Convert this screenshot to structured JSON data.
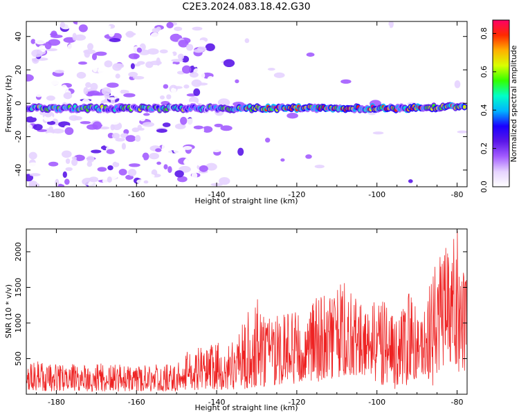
{
  "title": "C2E3.2024.083.18.42.G30",
  "chart_data": [
    {
      "type": "heatmap",
      "xlabel": "Height of straight line (km)",
      "ylabel": "Frequency (Hz)",
      "xlim": [
        -187.5,
        -77.5
      ],
      "ylim": [
        -50,
        49
      ],
      "xticks": [
        -180,
        -160,
        -140,
        -120,
        -100,
        -80
      ],
      "yticks": [
        -40,
        -20,
        0,
        20,
        40
      ],
      "colorbar": {
        "label": "Normalized spectral amplitude",
        "range": [
          0,
          0.87
        ],
        "ticks": [
          0.0,
          0.2,
          0.4,
          0.6,
          0.8
        ],
        "colormap": [
          "#ffffff",
          "#e6d3ff",
          "#a35cff",
          "#5a16e8",
          "#1a00ff",
          "#00b4ff",
          "#00ffc8",
          "#33ff00",
          "#d9ff00",
          "#ffb000",
          "#ff2a00",
          "#ff0066"
        ]
      },
      "features": [
        {
          "name": "signal band",
          "x_range": [
            -187.5,
            -78
          ],
          "frequency_hz": [
            -5,
            0
          ],
          "peak_amplitude": 0.85
        }
      ]
    },
    {
      "type": "line",
      "xlabel": "Height of straight line (km)",
      "ylabel": "SNR (10 * v/v)",
      "xlim": [
        -187.5,
        -77.5
      ],
      "ylim": [
        0,
        2320
      ],
      "xticks": [
        -180,
        -160,
        -140,
        -120,
        -100,
        -80
      ],
      "yticks": [
        500,
        1000,
        1500,
        2000
      ],
      "series": [
        {
          "color": "#ee2222",
          "envelope_x": [
            -187,
            -180,
            -170,
            -160,
            -150,
            -148,
            -145,
            -140,
            -135,
            -130,
            -128,
            -125,
            -120,
            -118,
            -115,
            -112,
            -110,
            -108,
            -105,
            -102,
            -100,
            -98,
            -95,
            -92,
            -90,
            -88,
            -86,
            -84,
            -82,
            -80,
            -79,
            -78
          ],
          "envelope_low": [
            50,
            40,
            40,
            40,
            40,
            60,
            60,
            60,
            70,
            80,
            100,
            130,
            150,
            200,
            170,
            200,
            250,
            200,
            240,
            260,
            150,
            120,
            60,
            130,
            200,
            280,
            50,
            380,
            420,
            400,
            200,
            280
          ],
          "envelope_high": [
            500,
            420,
            440,
            400,
            440,
            600,
            650,
            720,
            800,
            1450,
            1050,
            1100,
            1200,
            880,
            1550,
            1500,
            1500,
            1650,
            1400,
            1100,
            1750,
            1350,
            1050,
            1480,
            1300,
            1250,
            1750,
            2000,
            2100,
            2320,
            2000,
            1650
          ]
        }
      ]
    }
  ]
}
